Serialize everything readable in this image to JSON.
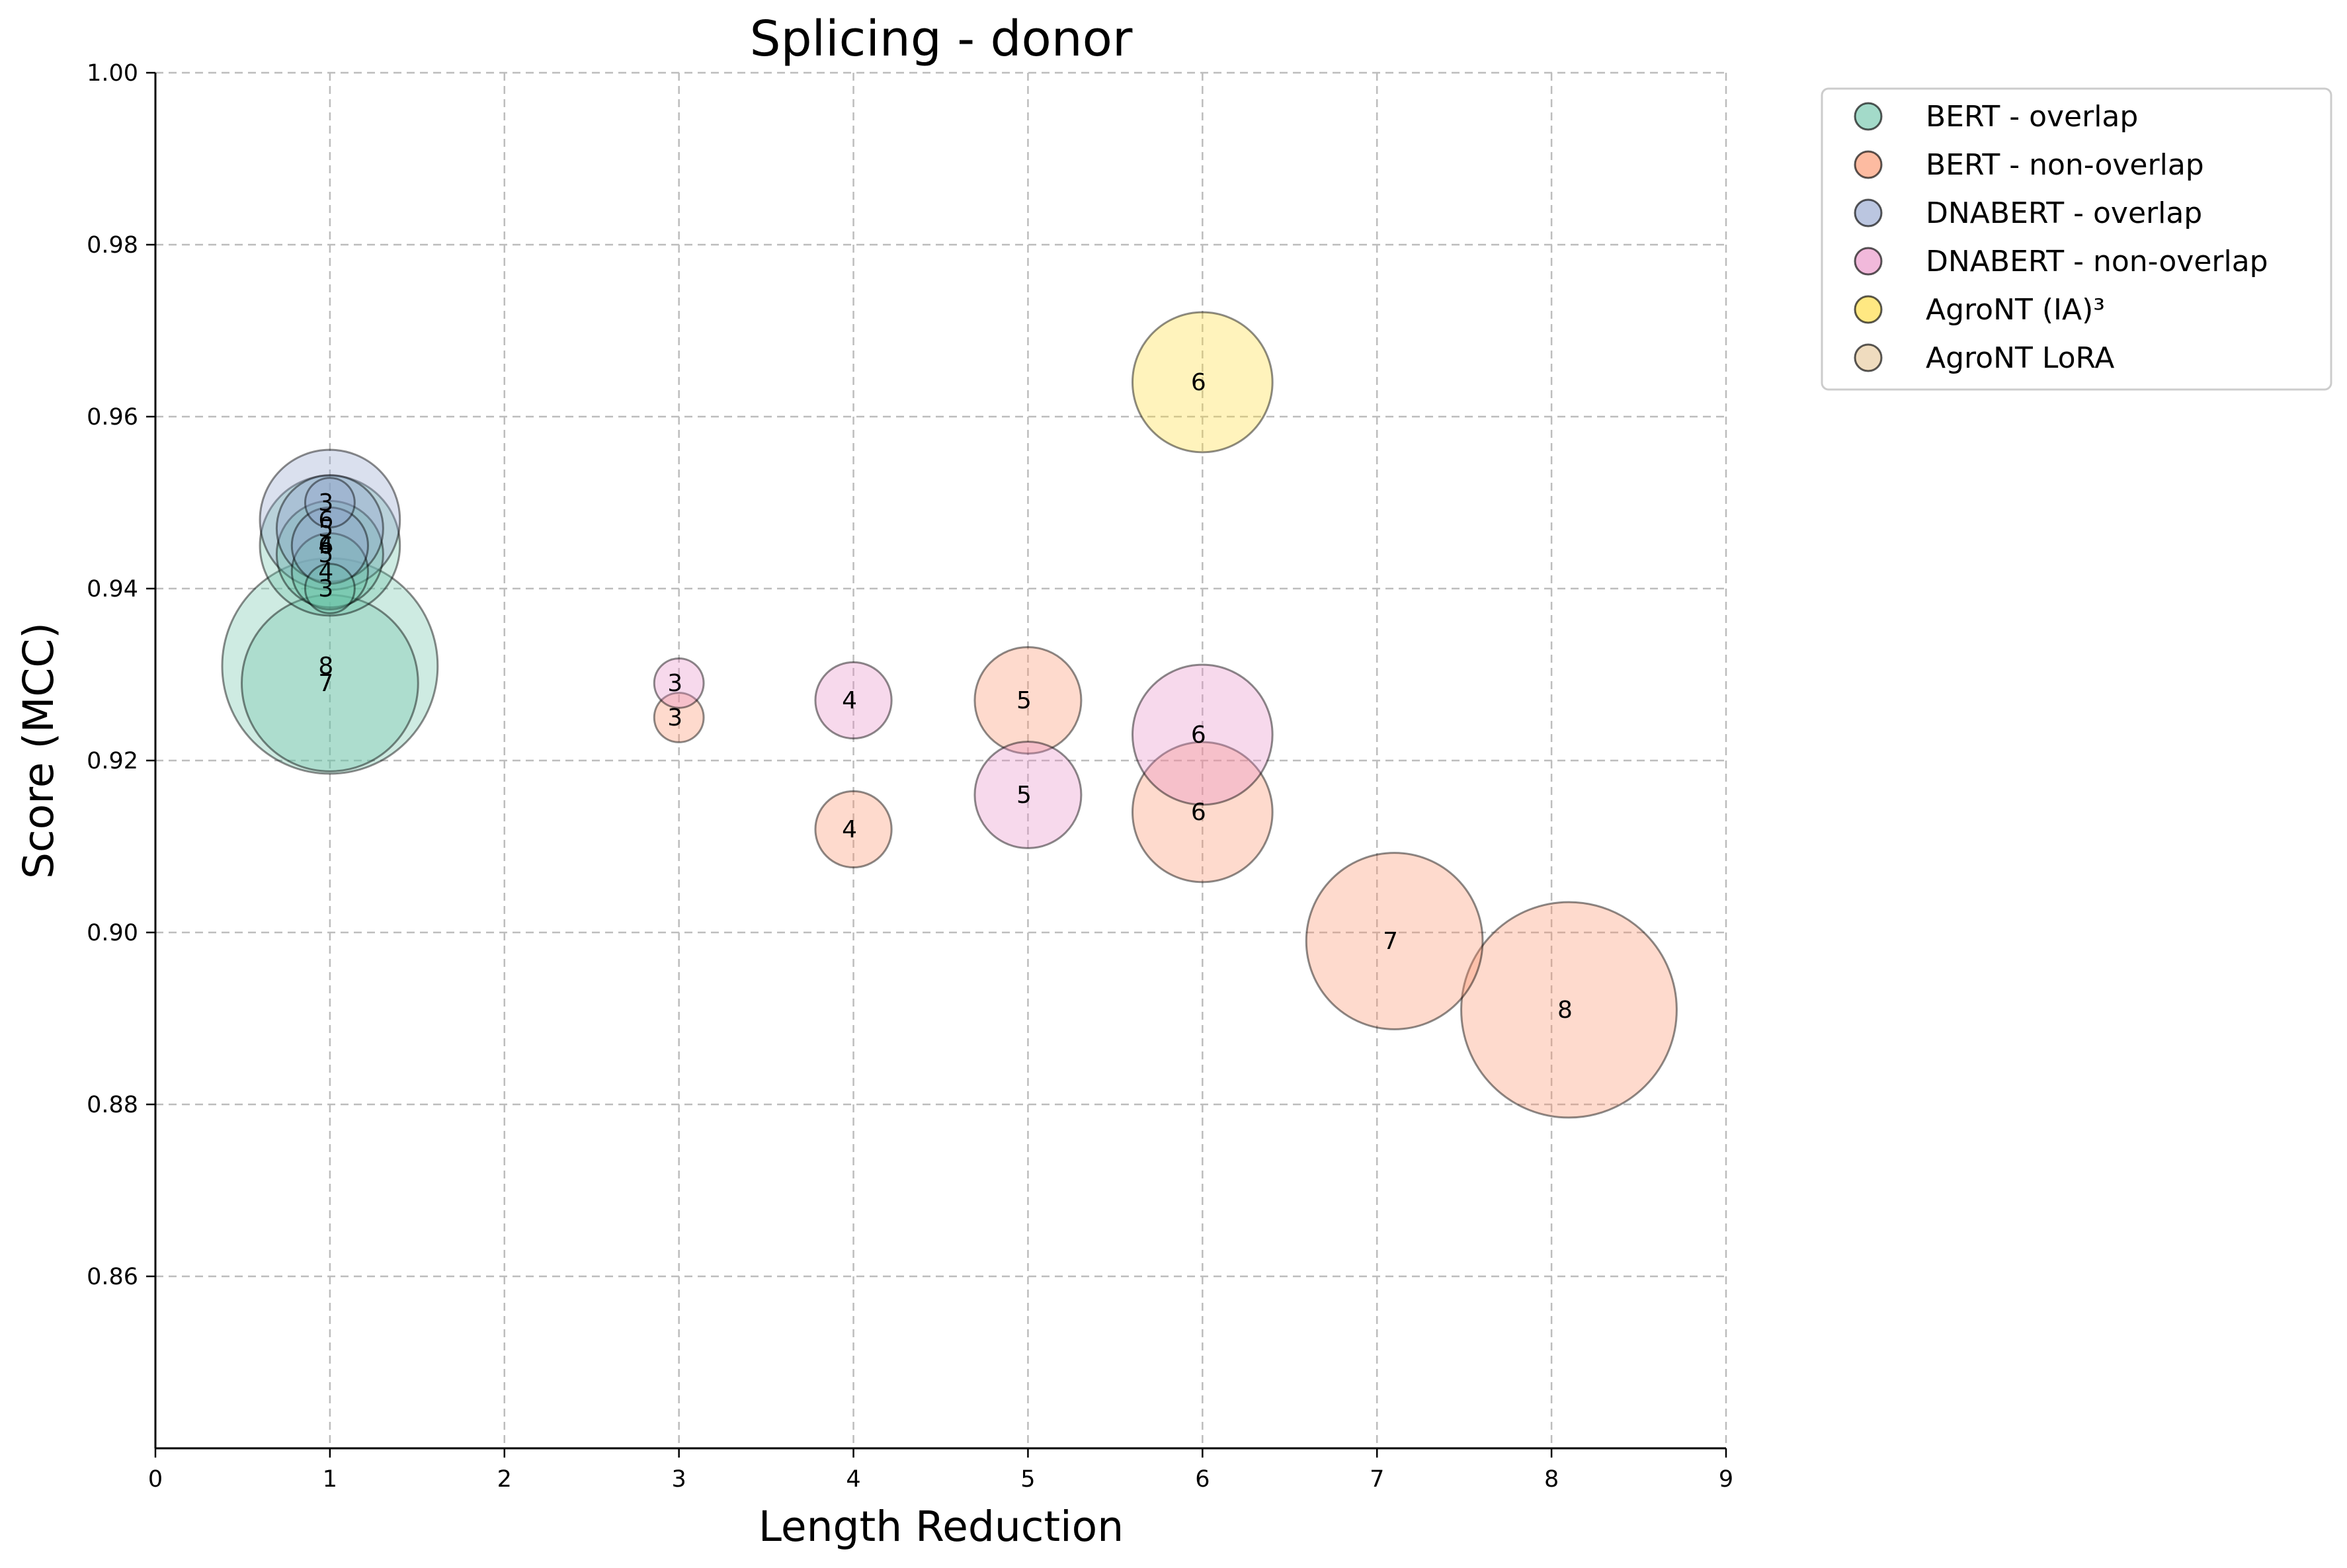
{
  "chart_data": {
    "type": "scatter",
    "title": "Splicing - donor",
    "xlabel": "Length Reduction",
    "ylabel": "Score (MCC)",
    "xlim": [
      0,
      9
    ],
    "ylim": [
      0.84,
      1.0
    ],
    "xticks": [
      0,
      1,
      2,
      3,
      4,
      5,
      6,
      7,
      8,
      9
    ],
    "yticks": [
      0.86,
      0.88,
      0.9,
      0.92,
      0.94,
      0.96,
      0.98,
      1.0
    ],
    "ytick_labels": [
      "0.86",
      "0.88",
      "0.90",
      "0.92",
      "0.94",
      "0.96",
      "0.98",
      "1.00"
    ],
    "grid": true,
    "legend_position": "outside-top-right",
    "bubble_size_encodes": "point label value",
    "series": [
      {
        "name": "BERT - overlap",
        "color": "#66c2a5",
        "points": [
          {
            "x": 1.0,
            "y": 0.931,
            "label": "8"
          },
          {
            "x": 1.0,
            "y": 0.929,
            "label": "7"
          },
          {
            "x": 1.0,
            "y": 0.945,
            "label": "6"
          },
          {
            "x": 1.0,
            "y": 0.944,
            "label": "5"
          },
          {
            "x": 1.0,
            "y": 0.942,
            "label": "4"
          },
          {
            "x": 1.0,
            "y": 0.94,
            "label": "3"
          }
        ]
      },
      {
        "name": "BERT - non-overlap",
        "color": "#fc8d62",
        "points": [
          {
            "x": 8.1,
            "y": 0.891,
            "label": "8"
          },
          {
            "x": 7.1,
            "y": 0.899,
            "label": "7"
          },
          {
            "x": 6.0,
            "y": 0.914,
            "label": "6"
          },
          {
            "x": 5.0,
            "y": 0.927,
            "label": "5"
          },
          {
            "x": 4.0,
            "y": 0.912,
            "label": "4"
          },
          {
            "x": 3.0,
            "y": 0.925,
            "label": "3"
          }
        ]
      },
      {
        "name": "DNABERT - overlap",
        "color": "#8da0cb",
        "points": [
          {
            "x": 1.0,
            "y": 0.948,
            "label": "6"
          },
          {
            "x": 1.0,
            "y": 0.947,
            "label": "5"
          },
          {
            "x": 1.0,
            "y": 0.945,
            "label": "4"
          },
          {
            "x": 1.0,
            "y": 0.95,
            "label": "3"
          }
        ]
      },
      {
        "name": "DNABERT - non-overlap",
        "color": "#e78ac3",
        "points": [
          {
            "x": 6.0,
            "y": 0.923,
            "label": "6"
          },
          {
            "x": 5.0,
            "y": 0.916,
            "label": "5"
          },
          {
            "x": 4.0,
            "y": 0.927,
            "label": "4"
          },
          {
            "x": 3.0,
            "y": 0.929,
            "label": "3"
          }
        ]
      },
      {
        "name": "AgroNT (IA)³",
        "color": "#ffd92f",
        "points": [
          {
            "x": 6.0,
            "y": 0.964,
            "label": "6"
          }
        ]
      },
      {
        "name": "AgroNT LoRA",
        "color": "#e5c494",
        "points": []
      }
    ]
  }
}
